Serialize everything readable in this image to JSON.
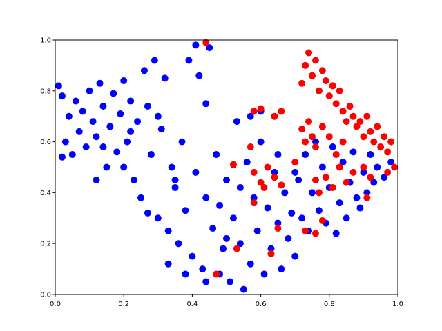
{
  "chart_data": {
    "type": "scatter",
    "xlim": [
      0,
      1
    ],
    "ylim": [
      0,
      1
    ],
    "xticks": [
      {
        "value": 0,
        "label": "0.0"
      },
      0.2,
      0.4,
      0.6,
      0.8,
      {
        "value": 1,
        "label": "1.0"
      }
    ],
    "yticks": [
      {
        "value": 0,
        "label": "0.0"
      },
      0.2,
      0.4,
      0.6,
      0.8,
      {
        "value": 1,
        "label": "1.0"
      }
    ],
    "series": [
      {
        "color": "#0000ff",
        "x": [
          0.01,
          0.02,
          0.03,
          0.04,
          0.05,
          0.06,
          0.07,
          0.08,
          0.09,
          0.1,
          0.11,
          0.12,
          0.13,
          0.14,
          0.15,
          0.16,
          0.17,
          0.18,
          0.19,
          0.2,
          0.21,
          0.22,
          0.23,
          0.24,
          0.25,
          0.26,
          0.27,
          0.28,
          0.29,
          0.3,
          0.31,
          0.32,
          0.33,
          0.34,
          0.35,
          0.36,
          0.37,
          0.38,
          0.39,
          0.4,
          0.41,
          0.42,
          0.43,
          0.44,
          0.45,
          0.46,
          0.47,
          0.48,
          0.49,
          0.5,
          0.51,
          0.52,
          0.53,
          0.54,
          0.55,
          0.56,
          0.57,
          0.58,
          0.59,
          0.6,
          0.61,
          0.62,
          0.63,
          0.64,
          0.65,
          0.66,
          0.67,
          0.68,
          0.69,
          0.7,
          0.71,
          0.72,
          0.73,
          0.74,
          0.75,
          0.76,
          0.77,
          0.78,
          0.79,
          0.8,
          0.81,
          0.82,
          0.83,
          0.84,
          0.85,
          0.86,
          0.87,
          0.88,
          0.89,
          0.9,
          0.91,
          0.92,
          0.93,
          0.94,
          0.96,
          0.98,
          0.02,
          0.12,
          0.2,
          0.27,
          0.33,
          0.38,
          0.44,
          0.5,
          0.57,
          0.6,
          0.44,
          0.41,
          0.35,
          0.48,
          0.54,
          0.65,
          0.7,
          0.14,
          0.22,
          0.3
        ],
        "y": [
          0.82,
          0.78,
          0.6,
          0.7,
          0.55,
          0.76,
          0.64,
          0.72,
          0.58,
          0.8,
          0.68,
          0.62,
          0.83,
          0.74,
          0.5,
          0.66,
          0.79,
          0.56,
          0.71,
          0.84,
          0.6,
          0.76,
          0.45,
          0.68,
          0.38,
          0.88,
          0.74,
          0.55,
          0.92,
          0.3,
          0.65,
          0.85,
          0.25,
          0.5,
          0.42,
          0.2,
          0.6,
          0.33,
          0.92,
          0.15,
          0.48,
          0.86,
          0.1,
          0.38,
          0.97,
          0.26,
          0.55,
          0.08,
          0.18,
          0.45,
          0.05,
          0.3,
          0.68,
          0.2,
          0.02,
          0.52,
          0.12,
          0.38,
          0.25,
          0.6,
          0.08,
          0.34,
          0.18,
          0.48,
          0.28,
          0.1,
          0.4,
          0.22,
          0.32,
          0.15,
          0.45,
          0.3,
          0.55,
          0.25,
          0.4,
          0.6,
          0.33,
          0.5,
          0.28,
          0.42,
          0.58,
          0.24,
          0.36,
          0.52,
          0.3,
          0.44,
          0.56,
          0.38,
          0.34,
          0.48,
          0.4,
          0.55,
          0.44,
          0.5,
          0.46,
          0.52,
          0.54,
          0.45,
          0.5,
          0.32,
          0.12,
          0.08,
          0.05,
          0.22,
          0.7,
          0.72,
          0.75,
          0.98,
          0.45,
          0.35,
          0.42,
          0.55,
          0.48,
          0.58,
          0.64,
          0.7
        ]
      },
      {
        "color": "#ff0000",
        "x": [
          0.72,
          0.73,
          0.74,
          0.75,
          0.76,
          0.77,
          0.78,
          0.79,
          0.8,
          0.81,
          0.82,
          0.83,
          0.84,
          0.85,
          0.86,
          0.87,
          0.88,
          0.89,
          0.9,
          0.91,
          0.92,
          0.93,
          0.94,
          0.95,
          0.96,
          0.97,
          0.98,
          0.99,
          0.72,
          0.73,
          0.74,
          0.75,
          0.76,
          0.78,
          0.8,
          0.82,
          0.84,
          0.76,
          0.77,
          0.79,
          0.81,
          0.83,
          0.85,
          0.87,
          0.9,
          0.92,
          0.58,
          0.6,
          0.61,
          0.62,
          0.64,
          0.66,
          0.58,
          0.6,
          0.64,
          0.66,
          0.57,
          0.58,
          0.65,
          0.73,
          0.76,
          0.52,
          0.53,
          0.47,
          0.44,
          0.63,
          0.7,
          0.78,
          0.91,
          0.97
        ],
        "y": [
          0.83,
          0.9,
          0.95,
          0.86,
          0.92,
          0.8,
          0.88,
          0.84,
          0.78,
          0.82,
          0.75,
          0.8,
          0.72,
          0.68,
          0.74,
          0.7,
          0.66,
          0.68,
          0.62,
          0.7,
          0.64,
          0.6,
          0.66,
          0.58,
          0.62,
          0.56,
          0.6,
          0.5,
          0.65,
          0.6,
          0.68,
          0.62,
          0.58,
          0.66,
          0.62,
          0.55,
          0.6,
          0.45,
          0.4,
          0.46,
          0.42,
          0.5,
          0.44,
          0.48,
          0.5,
          0.46,
          0.48,
          0.44,
          0.42,
          0.5,
          0.46,
          0.43,
          0.72,
          0.73,
          0.7,
          0.72,
          0.58,
          0.36,
          0.26,
          0.25,
          0.24,
          0.51,
          0.18,
          0.08,
          0.99,
          0.16,
          0.52,
          0.29,
          0.38,
          0.48
        ]
      }
    ]
  }
}
